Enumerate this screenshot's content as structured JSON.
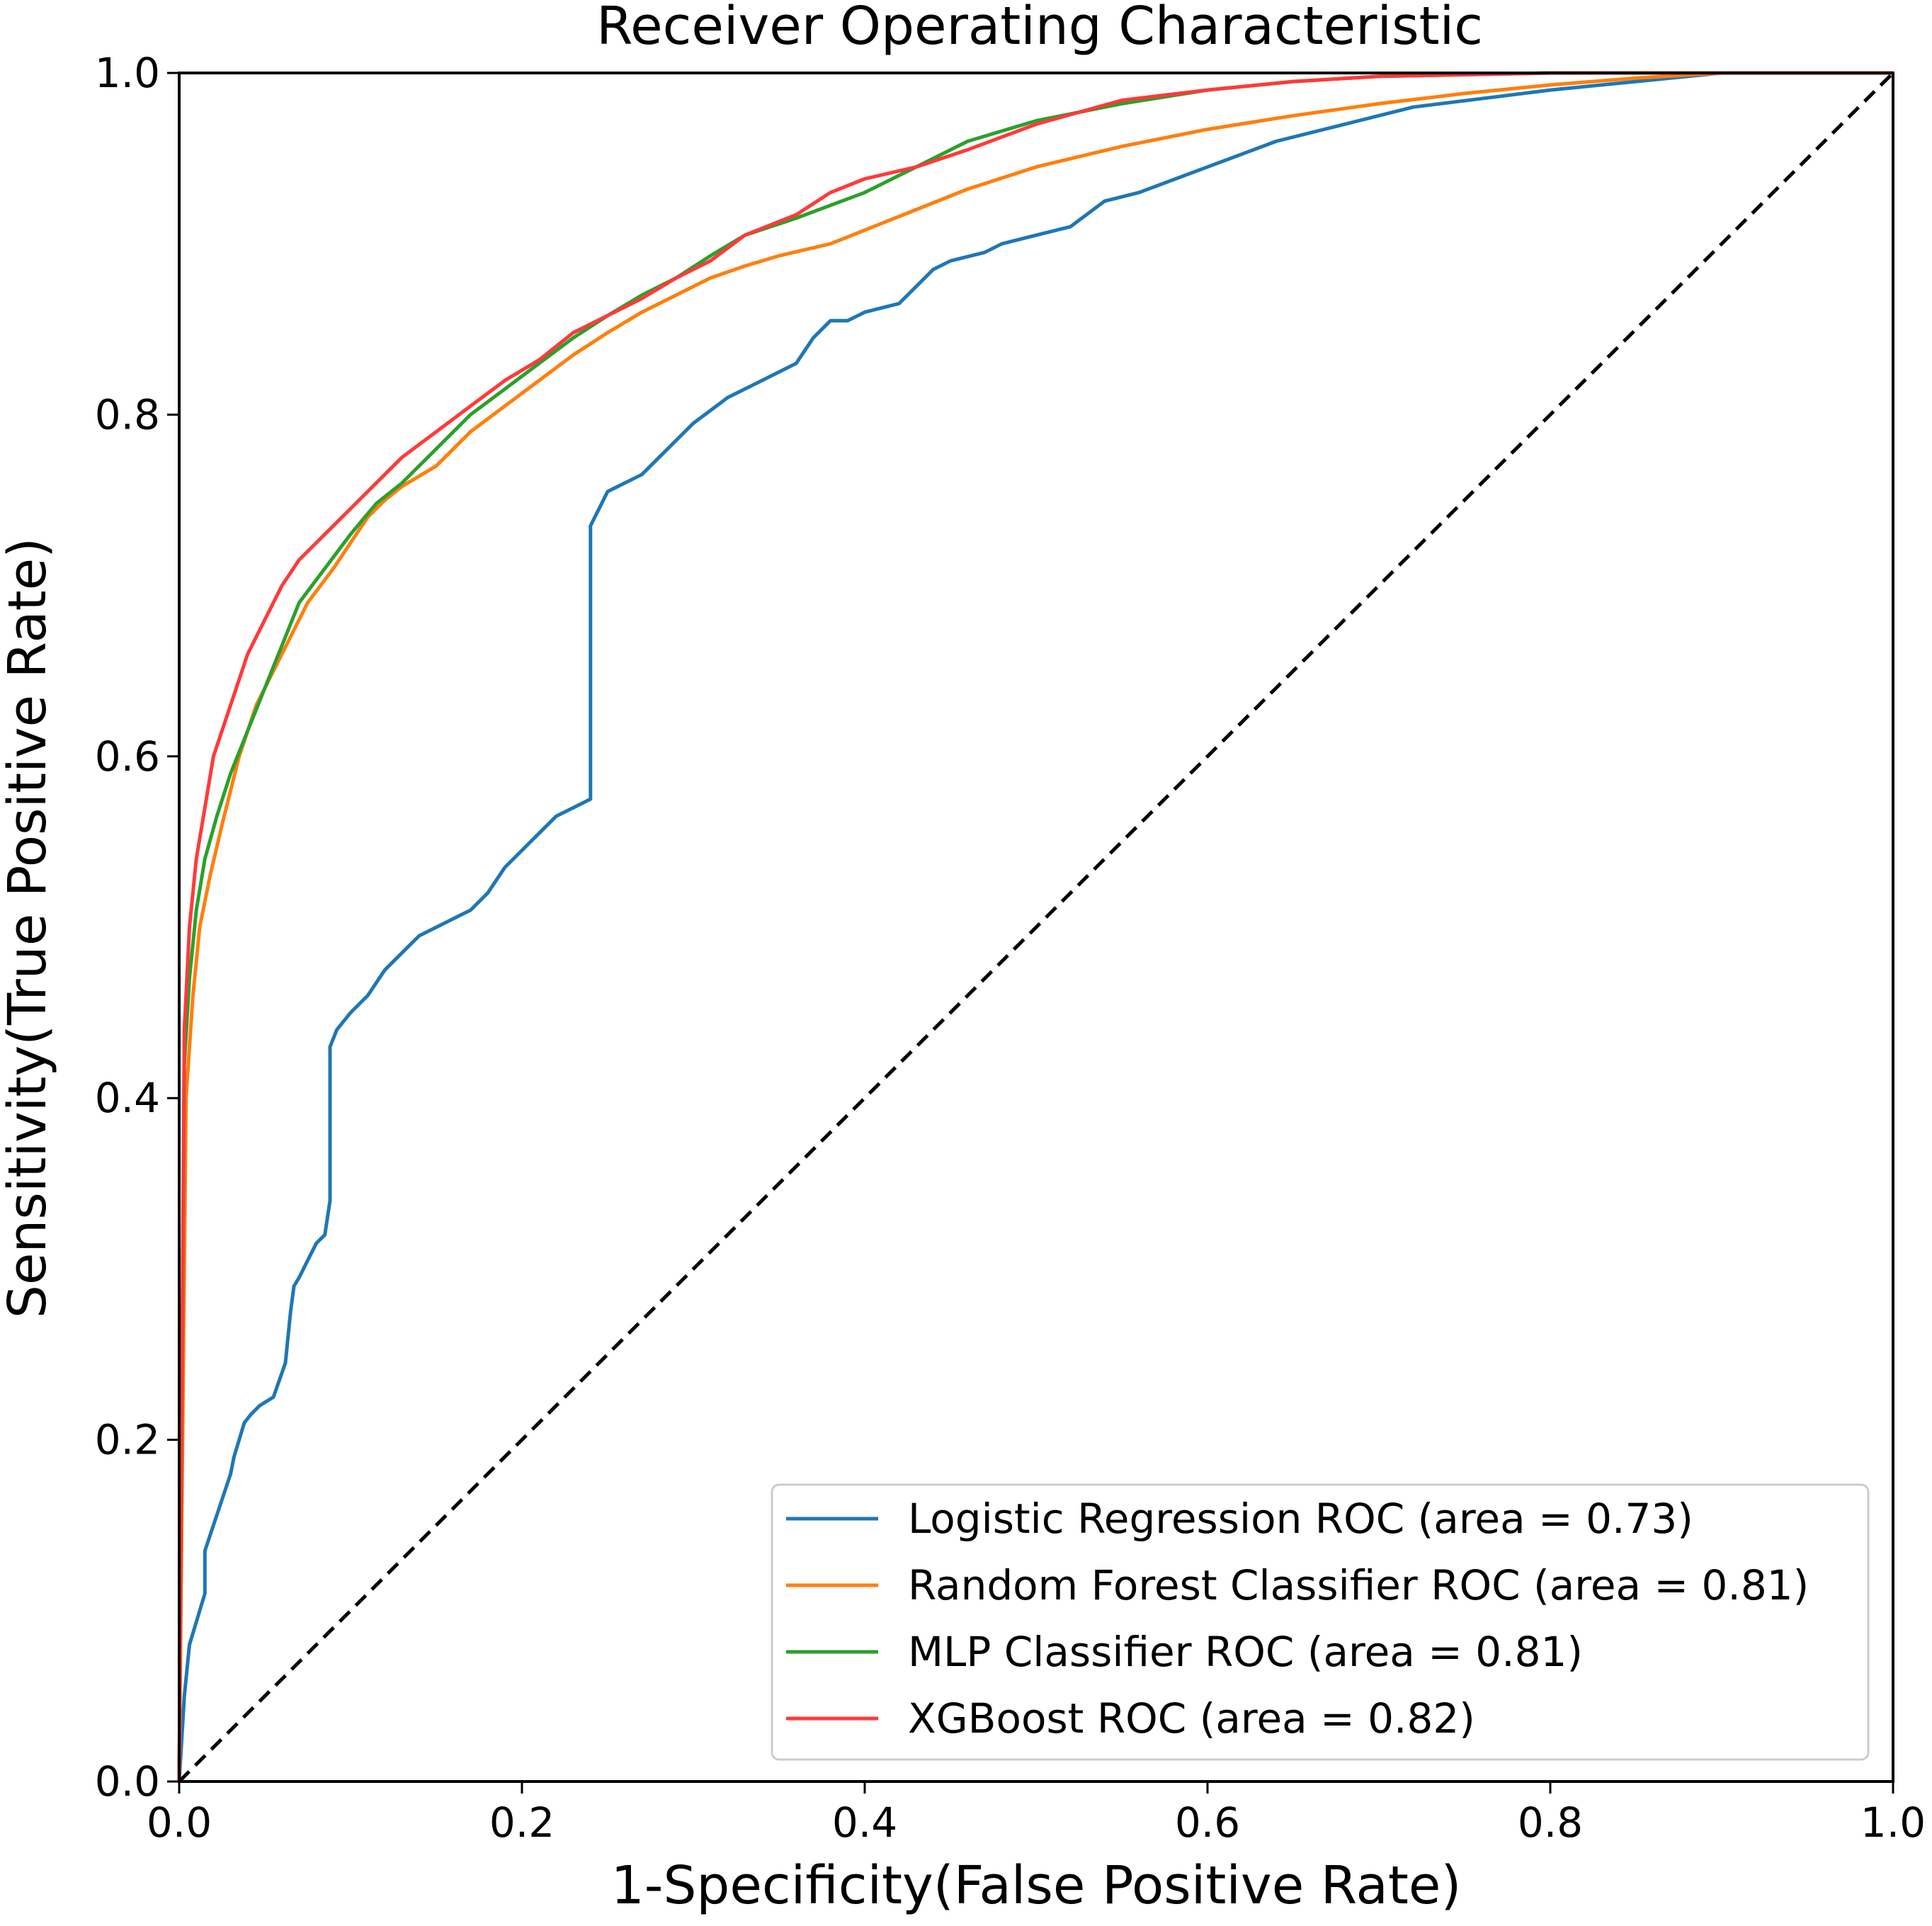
{
  "chart_data": {
    "type": "line",
    "title": "Receiver Operating Characteristic",
    "xlabel": "1-Specificity(False Positive Rate)",
    "ylabel": "Sensitivity(True Positive Rate)",
    "xlim": [
      0.0,
      1.0
    ],
    "ylim": [
      0.0,
      1.0
    ],
    "xticks": [
      0.0,
      0.2,
      0.4,
      0.6,
      0.8,
      1.0
    ],
    "yticks": [
      0.0,
      0.2,
      0.4,
      0.6,
      0.8,
      1.0
    ],
    "xtick_labels": [
      "0.0",
      "0.2",
      "0.4",
      "0.6",
      "0.8",
      "1.0"
    ],
    "ytick_labels": [
      "0.0",
      "0.2",
      "0.4",
      "0.6",
      "0.8",
      "1.0"
    ],
    "grid": false,
    "legend_position": "lower-right",
    "reference_line": {
      "name": "chance",
      "style": "dashed",
      "color": "#000000",
      "x": [
        0,
        1
      ],
      "y": [
        0,
        1
      ]
    },
    "series": [
      {
        "name": "Logistic Regression ROC (area = 0.73)",
        "color": "#1f77b4",
        "x": [
          0,
          0.003,
          0.006,
          0.012,
          0.015,
          0.015,
          0.02,
          0.025,
          0.03,
          0.032,
          0.038,
          0.042,
          0.047,
          0.055,
          0.062,
          0.065,
          0.067,
          0.07,
          0.075,
          0.08,
          0.085,
          0.088,
          0.088,
          0.092,
          0.1,
          0.11,
          0.12,
          0.13,
          0.14,
          0.15,
          0.16,
          0.17,
          0.18,
          0.19,
          0.2,
          0.21,
          0.22,
          0.23,
          0.24,
          0.24,
          0.245,
          0.25,
          0.26,
          0.27,
          0.28,
          0.29,
          0.3,
          0.32,
          0.34,
          0.36,
          0.37,
          0.38,
          0.39,
          0.4,
          0.42,
          0.43,
          0.44,
          0.45,
          0.47,
          0.48,
          0.5,
          0.52,
          0.54,
          0.56,
          0.6,
          0.64,
          0.68,
          0.72,
          0.76,
          0.8,
          0.85,
          0.9,
          1.0
        ],
        "y": [
          0,
          0.05,
          0.08,
          0.1,
          0.11,
          0.135,
          0.15,
          0.165,
          0.18,
          0.19,
          0.21,
          0.215,
          0.22,
          0.225,
          0.245,
          0.275,
          0.29,
          0.295,
          0.305,
          0.315,
          0.32,
          0.34,
          0.43,
          0.44,
          0.45,
          0.46,
          0.475,
          0.485,
          0.495,
          0.5,
          0.505,
          0.51,
          0.52,
          0.535,
          0.545,
          0.555,
          0.565,
          0.57,
          0.575,
          0.735,
          0.745,
          0.755,
          0.76,
          0.765,
          0.775,
          0.785,
          0.795,
          0.81,
          0.82,
          0.83,
          0.845,
          0.855,
          0.855,
          0.86,
          0.865,
          0.875,
          0.885,
          0.89,
          0.895,
          0.9,
          0.905,
          0.91,
          0.925,
          0.93,
          0.945,
          0.96,
          0.97,
          0.98,
          0.985,
          0.99,
          0.995,
          1.0,
          1.0
        ]
      },
      {
        "name": "Random Forest Classifier ROC (area = 0.81)",
        "color": "#ff7f0e",
        "x": [
          0,
          0.004,
          0.008,
          0.012,
          0.018,
          0.025,
          0.035,
          0.045,
          0.06,
          0.075,
          0.09,
          0.1,
          0.11,
          0.12,
          0.13,
          0.15,
          0.17,
          0.19,
          0.21,
          0.23,
          0.25,
          0.27,
          0.29,
          0.31,
          0.33,
          0.35,
          0.38,
          0.4,
          0.43,
          0.46,
          0.5,
          0.55,
          0.6,
          0.65,
          0.7,
          0.75,
          0.8,
          0.85,
          0.9,
          1.0
        ],
        "y": [
          0,
          0.4,
          0.46,
          0.5,
          0.53,
          0.56,
          0.6,
          0.63,
          0.66,
          0.69,
          0.71,
          0.725,
          0.74,
          0.75,
          0.758,
          0.77,
          0.79,
          0.805,
          0.82,
          0.835,
          0.848,
          0.86,
          0.87,
          0.88,
          0.887,
          0.893,
          0.9,
          0.908,
          0.92,
          0.932,
          0.945,
          0.957,
          0.967,
          0.975,
          0.982,
          0.988,
          0.993,
          0.997,
          1.0,
          1.0
        ]
      },
      {
        "name": "MLP Classifier ROC (area = 0.81)",
        "color": "#2ca02c",
        "x": [
          0,
          0.003,
          0.006,
          0.01,
          0.015,
          0.022,
          0.03,
          0.04,
          0.05,
          0.06,
          0.07,
          0.085,
          0.1,
          0.115,
          0.13,
          0.15,
          0.17,
          0.19,
          0.21,
          0.23,
          0.25,
          0.27,
          0.29,
          0.31,
          0.33,
          0.36,
          0.4,
          0.43,
          0.46,
          0.5,
          0.55,
          0.6,
          0.65,
          0.7,
          0.8,
          0.9,
          1.0
        ],
        "y": [
          0,
          0.42,
          0.47,
          0.51,
          0.54,
          0.565,
          0.59,
          0.615,
          0.64,
          0.665,
          0.69,
          0.71,
          0.73,
          0.748,
          0.76,
          0.78,
          0.8,
          0.815,
          0.83,
          0.845,
          0.858,
          0.87,
          0.88,
          0.893,
          0.905,
          0.915,
          0.93,
          0.945,
          0.96,
          0.972,
          0.982,
          0.99,
          0.995,
          0.998,
          1.0,
          1.0,
          1.0
        ]
      },
      {
        "name": "XGBoost ROC (area = 0.82)",
        "color": "#ff3a3a",
        "x": [
          0,
          0.003,
          0.006,
          0.01,
          0.015,
          0.02,
          0.03,
          0.04,
          0.05,
          0.06,
          0.07,
          0.085,
          0.1,
          0.115,
          0.13,
          0.15,
          0.17,
          0.19,
          0.21,
          0.23,
          0.25,
          0.27,
          0.29,
          0.31,
          0.33,
          0.36,
          0.38,
          0.4,
          0.43,
          0.46,
          0.5,
          0.55,
          0.6,
          0.65,
          0.7,
          0.8,
          0.9,
          1.0
        ],
        "y": [
          0,
          0.44,
          0.5,
          0.54,
          0.57,
          0.6,
          0.63,
          0.66,
          0.68,
          0.7,
          0.715,
          0.73,
          0.745,
          0.76,
          0.775,
          0.79,
          0.805,
          0.82,
          0.832,
          0.848,
          0.858,
          0.868,
          0.88,
          0.89,
          0.905,
          0.917,
          0.93,
          0.938,
          0.945,
          0.955,
          0.97,
          0.984,
          0.99,
          0.995,
          0.998,
          1.0,
          1.0,
          1.0
        ]
      }
    ]
  }
}
